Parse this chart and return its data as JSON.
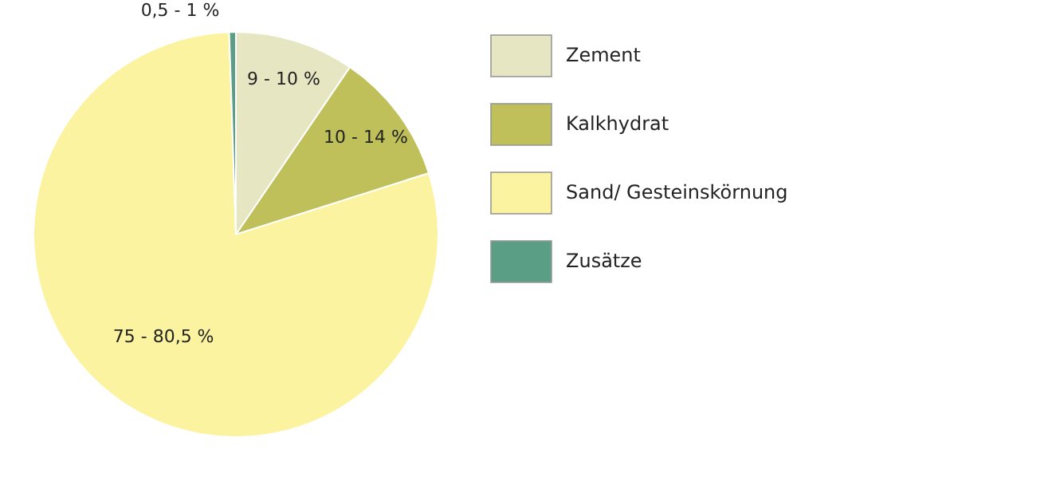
{
  "chart_data": {
    "type": "pie",
    "categories": [
      "Zement",
      "Kalkhydrat",
      "Sand/ Gesteinskörnung",
      "Zusätze"
    ],
    "values": [
      9,
      10,
      75,
      0.5
    ],
    "colors": [
      "#e6e6c3",
      "#bfc05a",
      "#fbf3a0",
      "#5a9e86"
    ],
    "value_labels": [
      "9 - 10 %",
      "10 - 14 %",
      "75 - 80,5 %",
      "0,5 - 1 %"
    ],
    "legend": "right"
  }
}
